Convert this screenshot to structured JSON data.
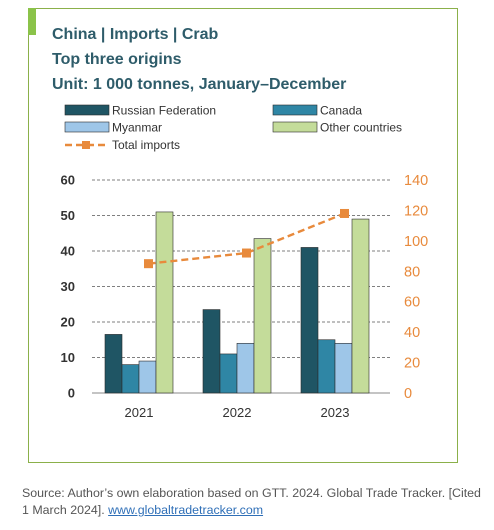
{
  "header": {
    "title": "China  |  Imports  |  Crab",
    "subtitle": "Top three origins",
    "unit": "Unit: 1 000 tonnes, January–December"
  },
  "source": {
    "text": "Source: Author’s own elaboration based on GTT. 2024. Global Trade Tracker. [Cited 1 March 2024].",
    "link": "www.globaltradetracker.com"
  },
  "chart_data": {
    "type": "bar",
    "categories": [
      "2021",
      "2022",
      "2023"
    ],
    "series": [
      {
        "name": "Russian Federation",
        "values": [
          16.5,
          23.5,
          41
        ],
        "color": "#1f5564"
      },
      {
        "name": "Canada",
        "values": [
          8,
          11,
          15
        ],
        "color": "#2f86a5"
      },
      {
        "name": "Myanmar",
        "values": [
          9,
          14,
          14
        ],
        "color": "#9ec6e8"
      },
      {
        "name": "Other countries",
        "values": [
          51,
          43.5,
          49
        ],
        "color": "#c4dc9a"
      }
    ],
    "line_series": {
      "name": "Total imports",
      "values": [
        85,
        92,
        118
      ],
      "color": "#e88a3c",
      "axis": "right"
    },
    "y_left": {
      "lim": [
        0,
        60
      ],
      "ticks": [
        "0",
        "10",
        "20",
        "30",
        "40",
        "50",
        "60"
      ]
    },
    "y_right": {
      "lim": [
        0,
        140
      ],
      "ticks": [
        "0",
        "20",
        "40",
        "60",
        "80",
        "100",
        "120",
        "140"
      ],
      "color": "#e88a3c"
    },
    "grid": true,
    "legend_position": "top"
  }
}
